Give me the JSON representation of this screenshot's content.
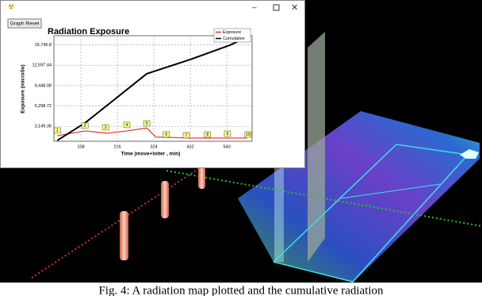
{
  "window": {
    "button": "Graph Reset"
  },
  "caption": "Fig. 4: A radiation map plotted and the cumulative radiation",
  "chart_data": {
    "type": "line",
    "title": "Radiation Exposure",
    "x_label": "Time (move+loiter , min)",
    "y_label": "Exposure (microSv)",
    "xlim": [
      28,
      615
    ],
    "ylim": [
      850,
      17150
    ],
    "xticks": [
      108,
      216,
      324,
      432,
      540
    ],
    "yticks": [
      {
        "value": 3149.36,
        "label": "3,149.36"
      },
      {
        "value": 6298.72,
        "label": "6,298.72"
      },
      {
        "value": 9448.08,
        "label": "9,448.08"
      },
      {
        "value": 12597.44,
        "label": "12,597.44"
      },
      {
        "value": 15746.8,
        "label": "15,746.8"
      }
    ],
    "grid": true,
    "legend": "upper right",
    "series": [
      {
        "name": "Exposure",
        "color": "#e03030",
        "x": [
          38,
          120,
          185,
          244,
          303,
          330,
          432,
          549,
          600
        ],
        "values": [
          1700,
          2450,
          2100,
          2450,
          2900,
          1500,
          1350,
          1350,
          1350
        ]
      },
      {
        "name": "Cumulative",
        "color": "#000000",
        "x": [
          38,
          120,
          185,
          244,
          303,
          432,
          549,
          600
        ],
        "values": [
          980,
          3676,
          6372,
          8823,
          11274,
          13480,
          15685,
          16913
        ]
      }
    ],
    "annotations": [
      {
        "text": "1",
        "x": 38,
        "y": 2450
      },
      {
        "text": "2",
        "x": 120,
        "y": 3190
      },
      {
        "text": "3",
        "x": 181,
        "y": 2940
      },
      {
        "text": "4",
        "x": 244,
        "y": 3310
      },
      {
        "text": "5",
        "x": 303,
        "y": 3550
      },
      {
        "text": "6",
        "x": 361,
        "y": 1840
      },
      {
        "text": "7",
        "x": 420,
        "y": 1720
      },
      {
        "text": "8",
        "x": 483,
        "y": 1840
      },
      {
        "text": "9",
        "x": 542,
        "y": 1960
      },
      {
        "text": "10",
        "x": 603,
        "y": 1840
      }
    ]
  }
}
